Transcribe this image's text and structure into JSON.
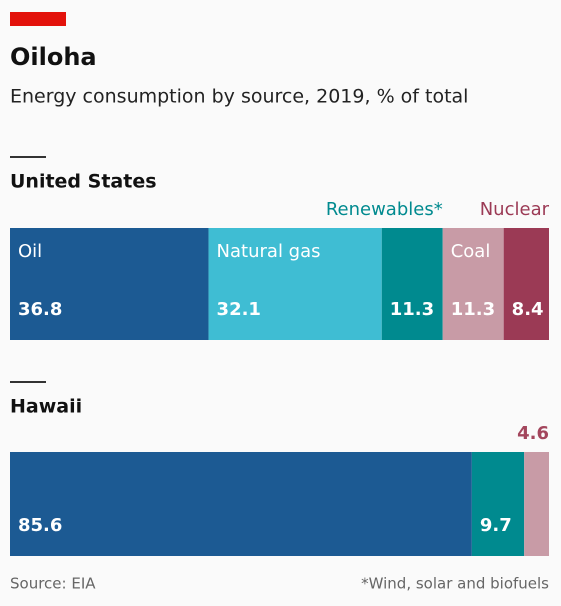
{
  "title": "Oiloha",
  "subtitle": "Energy consumption by source, 2019, % of total",
  "source": "Source: EIA",
  "footnote": "*Wind, solar and biofuels",
  "chart_data": [
    {
      "type": "stacked_bar",
      "title": "United States",
      "series": [
        {
          "name": "Oil",
          "color": "#1c5a93",
          "values": [
            36.8
          ]
        },
        {
          "name": "Natural gas",
          "color": "#3fbdd3",
          "values": [
            32.1
          ]
        },
        {
          "name": "Renewables*",
          "color": "#008a8f",
          "values": [
            11.3
          ]
        },
        {
          "name": "Coal",
          "color": "#c89ba6",
          "values": [
            11.3
          ]
        },
        {
          "name": "Nuclear",
          "color": "#9b3a55",
          "values": [
            8.4
          ]
        }
      ]
    },
    {
      "type": "stacked_bar",
      "title": "Hawaii",
      "series": [
        {
          "color": "#1c5a93",
          "values": [
            85.6
          ]
        },
        {
          "color": "#008a8f",
          "values": [
            9.7
          ]
        },
        {
          "color": "#c89ba6",
          "values": [
            4.6
          ]
        }
      ]
    }
  ]
}
